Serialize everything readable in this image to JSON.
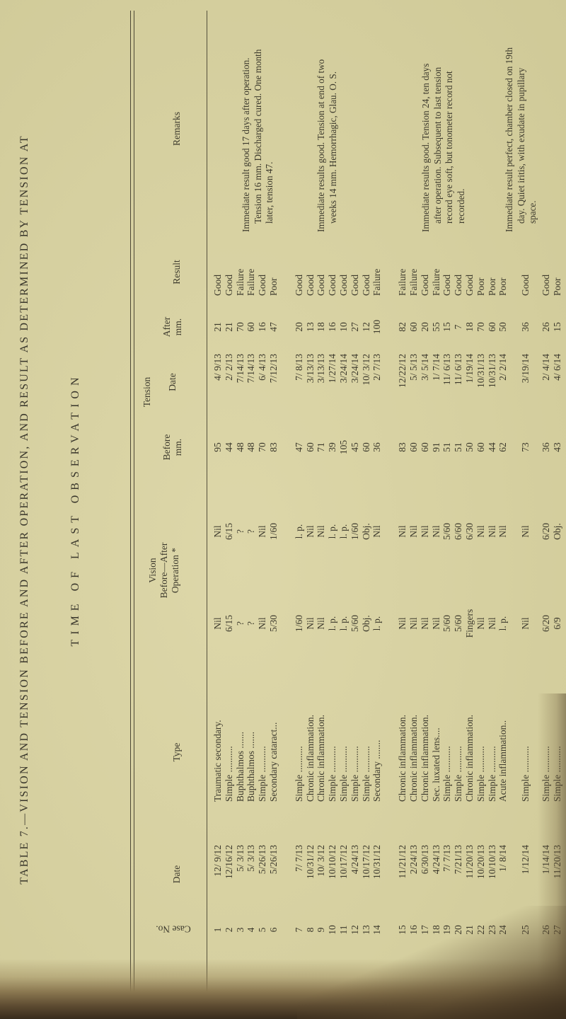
{
  "page": {
    "title_line1": "TABLE 7.—VISION AND TENSION BEFORE AND AFTER OPERATION, AND RESULT AS DETERMINED BY TENSION AT",
    "title_line2": "TIME OF LAST OBSERVATION"
  },
  "table": {
    "headers": {
      "case_no": "Case No.",
      "date": "Date",
      "type": "Type",
      "vision": "Vision\nBefore—After\nOperation *",
      "tension": "Tension",
      "tension_before": "Before\nmm.",
      "tension_date": "Date",
      "tension_after": "After\nmm.",
      "result": "Result",
      "remarks": "Remarks"
    },
    "rows": [
      {
        "no": "1",
        "date": "12/ 9/12",
        "type": "Traumatic secondary.",
        "vb": "Nil",
        "va": "Nil",
        "tb": "95",
        "td": "4/ 9/13",
        "ta": "21",
        "res": "Good"
      },
      {
        "no": "2",
        "date": "12/16/12",
        "type": "Simple ...........",
        "vb": "6/15",
        "va": "6/15",
        "tb": "44",
        "td": "2/ 2/13",
        "ta": "21",
        "res": "Good"
      },
      {
        "no": "3",
        "date": "5/ 3/13",
        "type": "Buphthalmos .......",
        "vb": "?",
        "va": "?",
        "tb": "48",
        "td": "7/14/13",
        "ta": "70",
        "res": "Failure"
      },
      {
        "no": "4",
        "date": "5/ 3/13",
        "type": "Buphthalmos .......",
        "vb": "?",
        "va": "?",
        "tb": "48",
        "td": "7/14/13",
        "ta": "60",
        "res": "Failure"
      },
      {
        "no": "5",
        "date": "5/26/13",
        "type": "Simple ...........",
        "vb": "Nil",
        "va": "Nil",
        "tb": "70",
        "td": "6/ 4/13",
        "ta": "16",
        "res": "Good"
      },
      {
        "no": "6",
        "date": "5/26/13",
        "type": "Secondary cataract...",
        "vb": "5/30",
        "va": "1/60",
        "tb": "83",
        "td": "7/12/13",
        "ta": "47",
        "res": "Poor"
      },
      {
        "no": "7",
        "date": "7/ 7/13",
        "type": "Simple ...........",
        "vb": "1/60",
        "va": "l. p.",
        "tb": "47",
        "td": "7/ 8/13",
        "ta": "20",
        "res": "Good",
        "gap": true
      },
      {
        "no": "8",
        "date": "10/31/12",
        "type": "Chronic inflammation.",
        "vb": "Nil",
        "va": "Nil",
        "tb": "60",
        "td": "3/13/13",
        "ta": "13",
        "res": "Good"
      },
      {
        "no": "9",
        "date": "10/ 3/12",
        "type": "Chronic inflammation.",
        "vb": "Nil",
        "va": "Nil",
        "tb": "71",
        "td": "3/13/13",
        "ta": "18",
        "res": "Good"
      },
      {
        "no": "10",
        "date": "10/10/12",
        "type": "Simple ...........",
        "vb": "l. p.",
        "va": "l. p.",
        "tb": "39",
        "td": "1/27/14",
        "ta": "16",
        "res": "Good"
      },
      {
        "no": "11",
        "date": "10/17/12",
        "type": "Simple ...........",
        "vb": "l. p.",
        "va": "l. p.",
        "tb": "105",
        "td": "3/24/14",
        "ta": "10",
        "res": "Good"
      },
      {
        "no": "12",
        "date": "4/24/13",
        "type": "Simple ...........",
        "vb": "5/60",
        "va": "1/60",
        "tb": "45",
        "td": "3/24/14",
        "ta": "27",
        "res": "Good"
      },
      {
        "no": "13",
        "date": "10/17/12",
        "type": "Simple ...........",
        "vb": "Obj.",
        "va": "Obj.",
        "tb": "60",
        "td": "10/ 3/12",
        "ta": "12",
        "res": "Good"
      },
      {
        "no": "14",
        "date": "10/31/12",
        "type": "Secondary ........",
        "vb": "l. p.",
        "va": "Nil",
        "tb": "36",
        "td": "2/ 7/13",
        "ta": "100",
        "res": "Failure"
      },
      {
        "no": "15",
        "date": "11/21/12",
        "type": "Chronic inflammation.",
        "vb": "Nil",
        "va": "Nil",
        "tb": "83",
        "td": "12/22/12",
        "ta": "82",
        "res": "Failure",
        "gap": true
      },
      {
        "no": "16",
        "date": "2/24/13",
        "type": "Chronic inflammation.",
        "vb": "Nil",
        "va": "Nil",
        "tb": "60",
        "td": "5/ 5/13",
        "ta": "60",
        "res": "Failure"
      },
      {
        "no": "17",
        "date": "6/30/13",
        "type": "Chronic inflammation.",
        "vb": "Nil",
        "va": "Nil",
        "tb": "60",
        "td": "3/ 5/14",
        "ta": "20",
        "res": "Good"
      },
      {
        "no": "18",
        "date": "4/24/13",
        "type": "Sec. luxated lens....",
        "vb": "Nil",
        "va": "Nil",
        "tb": "91",
        "td": "1/ 7/14",
        "ta": "55",
        "res": "Failure"
      },
      {
        "no": "19",
        "date": "7/ 7/13",
        "type": "Simple ...........",
        "vb": "5/60",
        "va": "5/60",
        "tb": "51",
        "td": "11/ 6/13",
        "ta": "15",
        "res": "Good"
      },
      {
        "no": "20",
        "date": "7/21/13",
        "type": "Simple ...........",
        "vb": "5/60",
        "va": "6/60",
        "tb": "51",
        "td": "11/ 6/13",
        "ta": "7",
        "res": "Good"
      },
      {
        "no": "21",
        "date": "11/20/13",
        "type": "Chronic inflammation.",
        "vb": "Fingers",
        "va": "6/30",
        "tb": "50",
        "td": "1/19/14",
        "ta": "18",
        "res": "Good"
      },
      {
        "no": "22",
        "date": "10/20/13",
        "type": "Simple ...........",
        "vb": "Nil",
        "va": "Nil",
        "tb": "60",
        "td": "10/31/13",
        "ta": "70",
        "res": "Poor"
      },
      {
        "no": "23",
        "date": "10/10/13",
        "type": "Simple ...........",
        "vb": "Nil",
        "va": "Nil",
        "tb": "44",
        "td": "10/31/13",
        "ta": "60",
        "res": "Poor"
      },
      {
        "no": "24",
        "date": "1/ 8/14",
        "type": "Acute inflammation..",
        "vb": "l. p.",
        "va": "Nil",
        "tb": "62",
        "td": "2/ 2/14",
        "ta": "50",
        "res": "Poor"
      },
      {
        "no": "25",
        "date": "1/12/14",
        "type": "Simple ...........",
        "vb": "Nil",
        "va": "Nil",
        "tb": "73",
        "td": "3/19/14",
        "ta": "36",
        "res": "Good",
        "gap": true
      },
      {
        "no": "26",
        "date": "1/14/14",
        "type": "Simple ...........",
        "vb": "6/20",
        "va": "6/20",
        "tb": "36",
        "td": "2/ 4/14",
        "ta": "26",
        "res": "Good",
        "gap": true
      },
      {
        "no": "27",
        "date": "11/20/13",
        "type": "Simple ...........",
        "vb": "6/9",
        "va": "Obj.",
        "tb": "43",
        "td": "4/ 6/14",
        "ta": "15",
        "res": "Poor"
      }
    ],
    "remarks": [
      {
        "text": "Immediate result good 17 days after operation.  Tension 16 mm.  Discharged cured.  One month later, tension 47."
      },
      {
        "text": "Immediate results good.  Tension at end of two weeks 14 mm. Hemorrhagic, Glau. O. S."
      },
      {
        "text": "Immediate results good.  Tension 24, ten days after operation. Subsequent to last tension record eye soft, but tonometer record not recorded."
      },
      {
        "text": "Immediate result perfect, chamber closed on 19th day.  Quiet iritis, with exudate in pupillary space."
      }
    ]
  }
}
